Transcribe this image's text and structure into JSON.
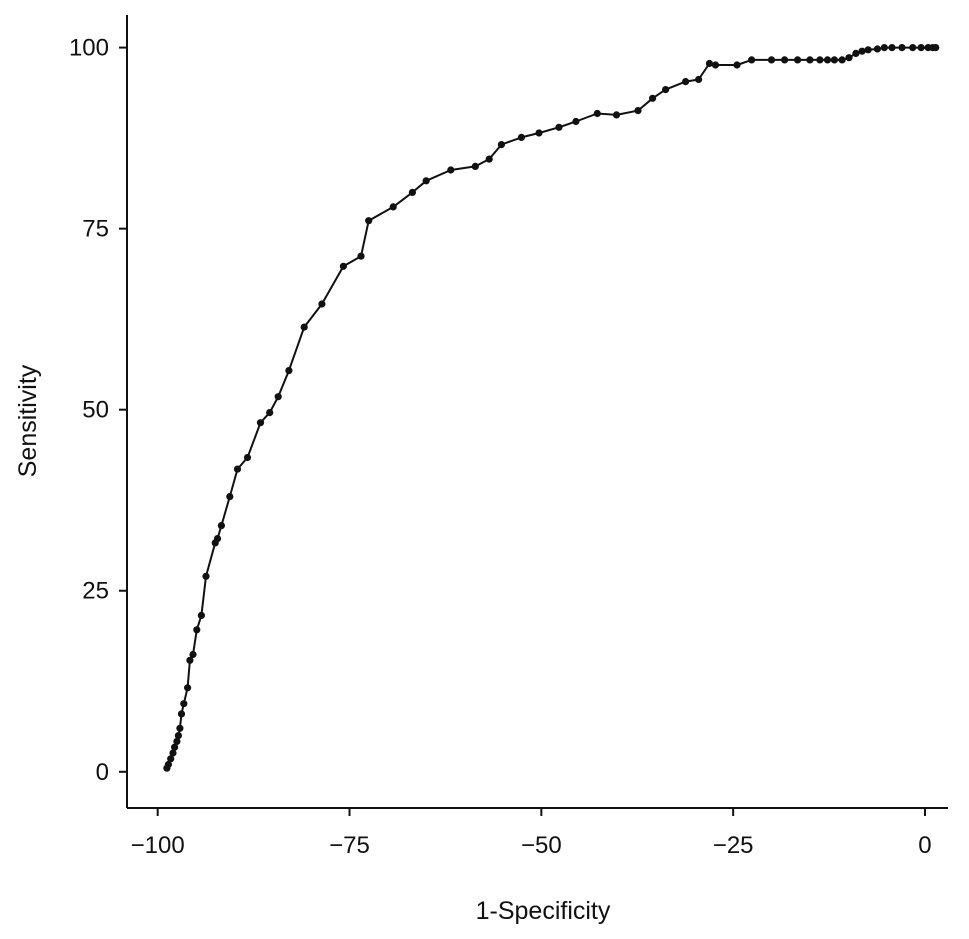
{
  "chart_data": {
    "type": "line",
    "title": "",
    "xlabel": "1-Specificity",
    "ylabel": "Sensitivity",
    "xlim": [
      -104,
      3
    ],
    "ylim": [
      -5,
      104.5
    ],
    "xticks": [
      -100,
      -75,
      -50,
      -25,
      0
    ],
    "yticks": [
      0,
      25,
      50,
      75,
      100
    ],
    "xtick_labels": [
      "−100",
      "−75",
      "−50",
      "−25",
      "0"
    ],
    "ytick_labels": [
      "0",
      "25",
      "50",
      "75",
      "100"
    ],
    "grid": false,
    "legend": "none",
    "line_color": "#111111",
    "marker": "dot",
    "series": [
      {
        "points": [
          [
            -98.8,
            0.5
          ],
          [
            -98.6,
            1.0
          ],
          [
            -98.3,
            1.8
          ],
          [
            -98.0,
            2.6
          ],
          [
            -97.8,
            3.4
          ],
          [
            -97.5,
            4.2
          ],
          [
            -97.3,
            5.0
          ],
          [
            -97.1,
            6.0
          ],
          [
            -96.9,
            8.0
          ],
          [
            -96.6,
            9.4
          ],
          [
            -96.1,
            11.6
          ],
          [
            -95.8,
            15.4
          ],
          [
            -95.4,
            16.2
          ],
          [
            -94.9,
            19.6
          ],
          [
            -94.3,
            21.6
          ],
          [
            -93.7,
            27.0
          ],
          [
            -92.5,
            31.6
          ],
          [
            -92.2,
            32.2
          ],
          [
            -91.7,
            34.0
          ],
          [
            -90.6,
            38.0
          ],
          [
            -89.6,
            41.8
          ],
          [
            -88.3,
            43.4
          ],
          [
            -86.6,
            48.2
          ],
          [
            -85.4,
            49.6
          ],
          [
            -84.3,
            51.8
          ],
          [
            -82.9,
            55.4
          ],
          [
            -80.9,
            61.4
          ],
          [
            -78.6,
            64.6
          ],
          [
            -75.8,
            69.8
          ],
          [
            -73.5,
            71.2
          ],
          [
            -72.5,
            76.1
          ],
          [
            -69.3,
            78.0
          ],
          [
            -66.8,
            80.0
          ],
          [
            -65.0,
            81.6
          ],
          [
            -61.8,
            83.1
          ],
          [
            -58.6,
            83.6
          ],
          [
            -56.8,
            84.6
          ],
          [
            -55.2,
            86.6
          ],
          [
            -52.6,
            87.6
          ],
          [
            -50.3,
            88.2
          ],
          [
            -47.7,
            89.0
          ],
          [
            -45.5,
            89.8
          ],
          [
            -42.7,
            90.9
          ],
          [
            -40.2,
            90.7
          ],
          [
            -37.4,
            91.3
          ],
          [
            -35.5,
            93.0
          ],
          [
            -33.8,
            94.2
          ],
          [
            -31.2,
            95.3
          ],
          [
            -29.5,
            95.6
          ],
          [
            -28.1,
            97.8
          ],
          [
            -27.3,
            97.6
          ],
          [
            -24.5,
            97.6
          ],
          [
            -22.6,
            98.3
          ],
          [
            -20.0,
            98.3
          ],
          [
            -18.3,
            98.3
          ],
          [
            -16.6,
            98.3
          ],
          [
            -15.0,
            98.3
          ],
          [
            -13.7,
            98.3
          ],
          [
            -12.7,
            98.3
          ],
          [
            -11.8,
            98.3
          ],
          [
            -10.8,
            98.3
          ],
          [
            -9.9,
            98.6
          ],
          [
            -9.0,
            99.2
          ],
          [
            -8.2,
            99.5
          ],
          [
            -7.4,
            99.7
          ],
          [
            -6.2,
            99.8
          ],
          [
            -5.3,
            100.0
          ],
          [
            -4.3,
            100.0
          ],
          [
            -3.0,
            100.0
          ],
          [
            -1.6,
            100.0
          ],
          [
            -0.5,
            100.0
          ],
          [
            0.4,
            100.0
          ],
          [
            1.0,
            100.0
          ],
          [
            1.4,
            100.0
          ]
        ]
      }
    ]
  }
}
